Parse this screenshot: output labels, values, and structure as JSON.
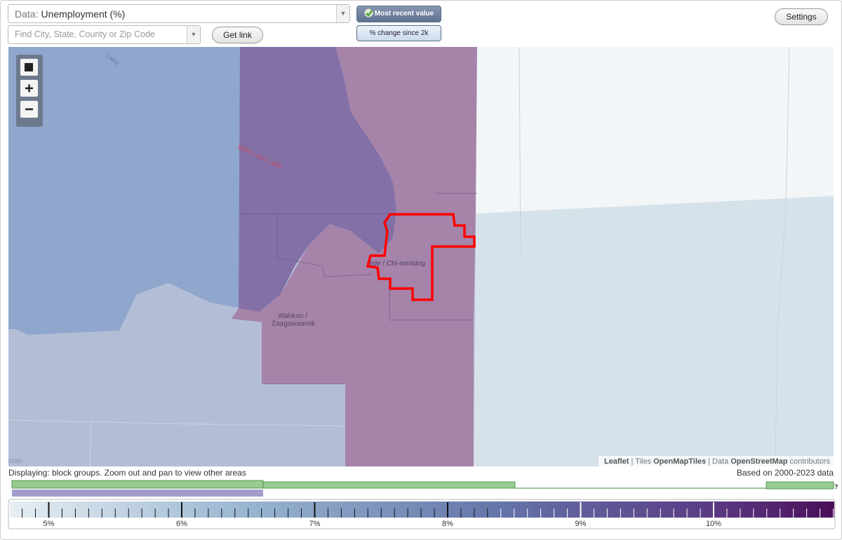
{
  "header": {
    "data_label": "Data:",
    "data_value": "Unemployment (%)",
    "search_placeholder": "Find City, State, County or Zip Code",
    "get_link": "Get link",
    "most_recent": "Most recent value",
    "percent_change": "% change since 2k",
    "settings": "Settings"
  },
  "map": {
    "labels": [
      "Lake",
      "Mille Lacs Lake",
      "Isle / Chi-minising",
      "Wahkon /",
      "Zaagawaamik",
      "man"
    ],
    "attribution": [
      "Leaflet",
      "|",
      "Tiles",
      "OpenMapTiles",
      "|",
      "Data",
      "OpenStreetMap",
      "contributors"
    ]
  },
  "footer": {
    "displaying": "Displaying: block groups. Zoom out and pan to view other areas",
    "based_on": "Based on 2000-2023 data",
    "help": "?"
  },
  "legend": {
    "ticks": [
      "5%",
      "6%",
      "7%",
      "8%",
      "9%",
      "10%"
    ]
  }
}
